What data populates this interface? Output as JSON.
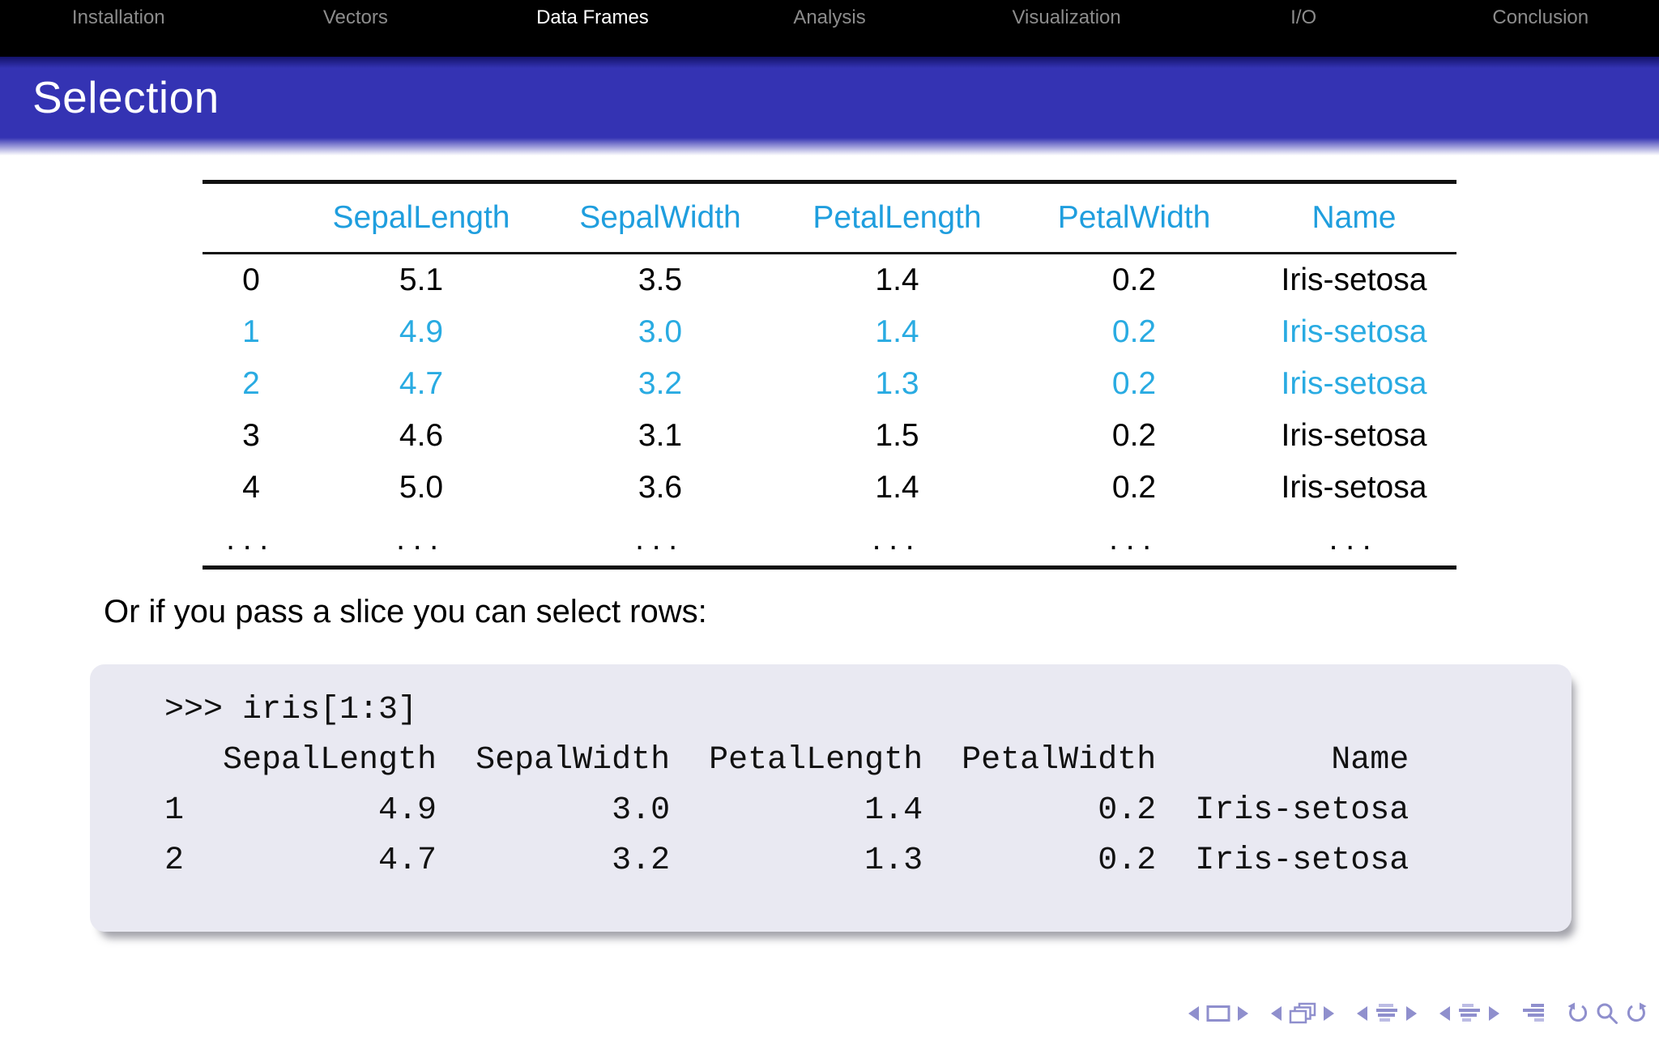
{
  "slide": {
    "title": "Selection",
    "nav_sections": [
      {
        "label": "Installation",
        "active": false
      },
      {
        "label": "Vectors",
        "active": false
      },
      {
        "label": "Data Frames",
        "active": true
      },
      {
        "label": "Analysis",
        "active": false
      },
      {
        "label": "Visualization",
        "active": false
      },
      {
        "label": "I/O",
        "active": false
      },
      {
        "label": "Conclusion",
        "active": false
      }
    ]
  },
  "table": {
    "columns": [
      "",
      "SepalLength",
      "SepalWidth",
      "PetalLength",
      "PetalWidth",
      "Name"
    ],
    "rows": [
      {
        "index": "0",
        "values": [
          "5.1",
          "3.5",
          "1.4",
          "0.2",
          "Iris-setosa"
        ],
        "highlighted": false
      },
      {
        "index": "1",
        "values": [
          "4.9",
          "3.0",
          "1.4",
          "0.2",
          "Iris-setosa"
        ],
        "highlighted": true
      },
      {
        "index": "2",
        "values": [
          "4.7",
          "3.2",
          "1.3",
          "0.2",
          "Iris-setosa"
        ],
        "highlighted": true
      },
      {
        "index": "3",
        "values": [
          "4.6",
          "3.1",
          "1.5",
          "0.2",
          "Iris-setosa"
        ],
        "highlighted": false
      },
      {
        "index": "4",
        "values": [
          "5.0",
          "3.6",
          "1.4",
          "0.2",
          "Iris-setosa"
        ],
        "highlighted": false
      },
      {
        "index": "...",
        "values": [
          "...",
          "...",
          "...",
          "...",
          "..."
        ],
        "highlighted": false
      }
    ]
  },
  "body_text": "Or if you pass a slice you can select rows:",
  "code": {
    "lines": [
      ">>> iris[1:3]",
      "   SepalLength  SepalWidth  PetalLength  PetalWidth         Name",
      "1          4.9         3.0          1.4         0.2  Iris-setosa",
      "2          4.7         3.2          1.3         0.2  Iris-setosa"
    ]
  },
  "beamer_nav": {
    "icons": [
      "prev-slide",
      "slide-frame",
      "next-slide",
      "prev-frame",
      "frame-stack",
      "next-frame",
      "prev-subsection",
      "subsection-list",
      "next-subsection",
      "prev-section",
      "section-list",
      "next-section",
      "appendix-list",
      "undo",
      "search",
      "redo"
    ]
  },
  "colors": {
    "title_bar": "#3433b3",
    "header_accent": "#1f9ede",
    "row_highlight": "#29abe2",
    "nav_inactive": "#8c8c8c",
    "nav_active": "#ffffff",
    "code_background": "#e9e9f2",
    "beamer_icon": "#8f8fcd"
  }
}
